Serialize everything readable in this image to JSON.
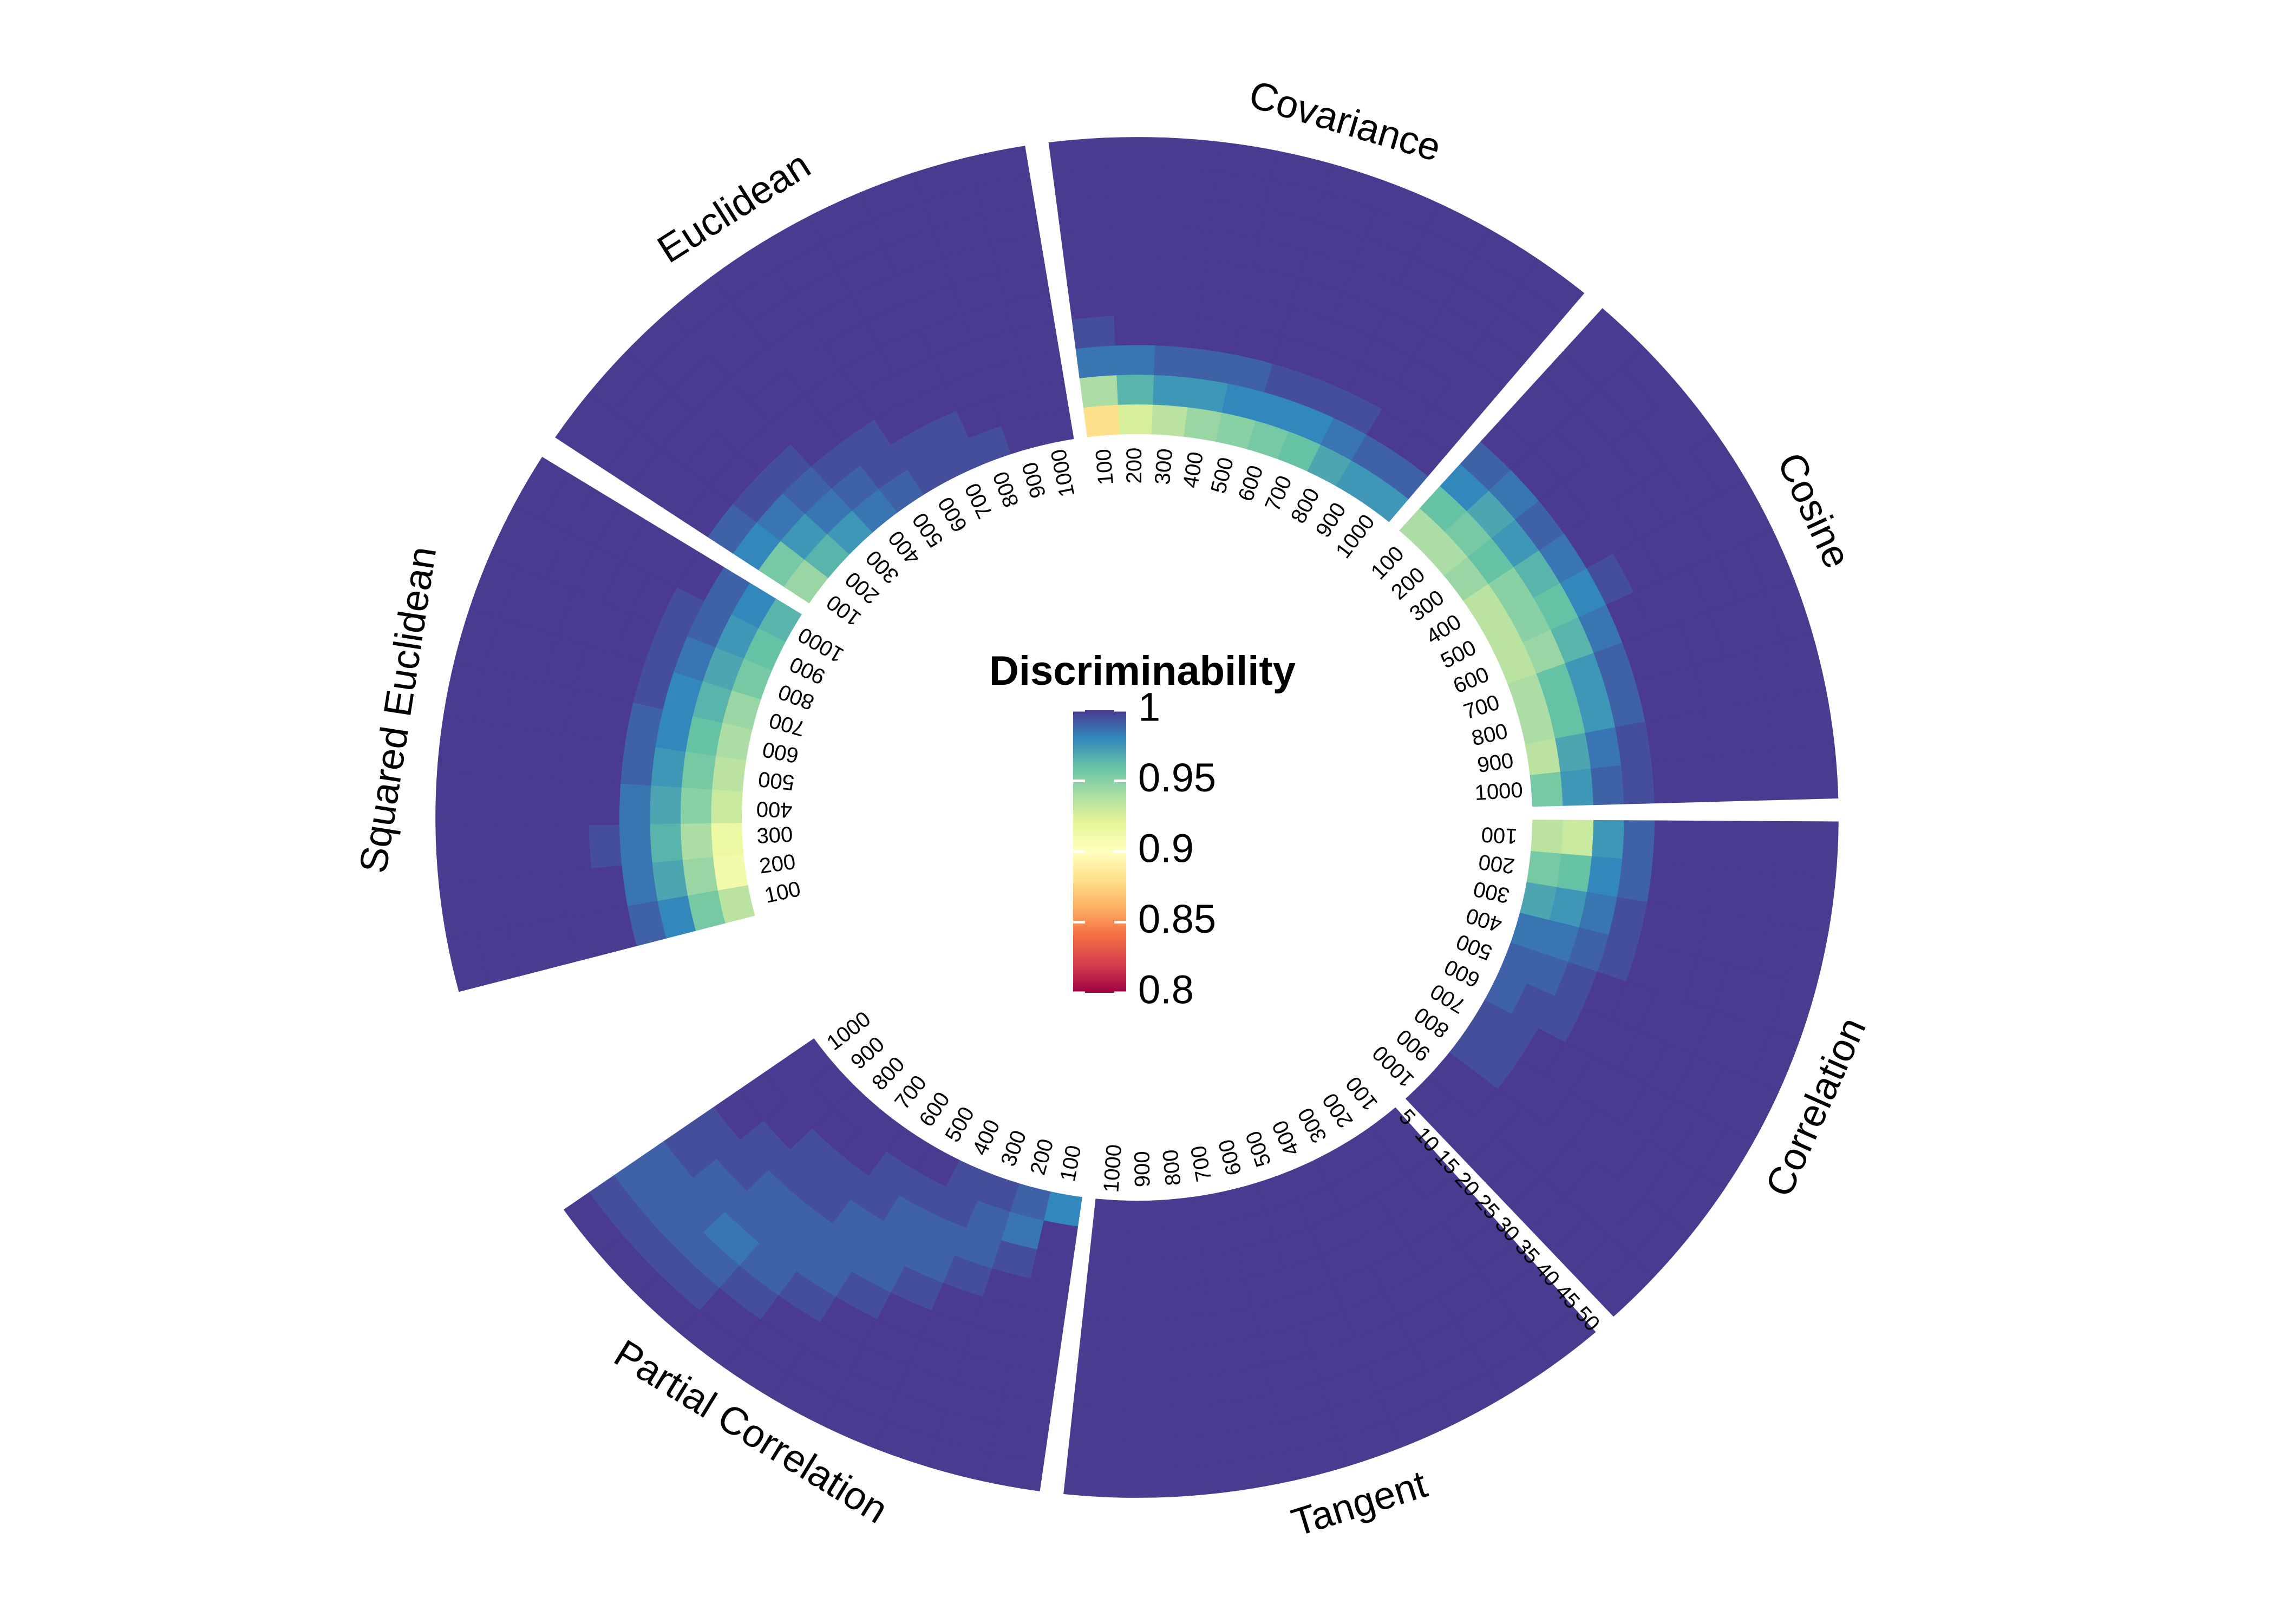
{
  "chart_data": {
    "type": "heatmap",
    "layout": "polar",
    "legend": {
      "title": "Discriminability",
      "range": [
        0.8,
        1
      ],
      "ticks": [
        1,
        0.95,
        0.9,
        0.85,
        0.8
      ],
      "tick_labels": [
        "1",
        "0.95",
        "0.9",
        "0.85",
        "0.8"
      ],
      "palette": [
        "#9e0142",
        "#d53e4f",
        "#f46d43",
        "#fdae61",
        "#fee08b",
        "#ffffbf",
        "#e6f598",
        "#abdda4",
        "#66c2a5",
        "#3288bd",
        "#4a3a90"
      ]
    },
    "angular_ticks": [
      "100",
      "200",
      "300",
      "400",
      "500",
      "600",
      "700",
      "800",
      "900",
      "1000"
    ],
    "radial_ticks": [
      "5",
      "10",
      "15",
      "20",
      "25",
      "30",
      "35",
      "40",
      "45",
      "50"
    ],
    "angular_values": [
      100,
      200,
      300,
      400,
      500,
      600,
      700,
      800,
      900,
      1000
    ],
    "radial_values": [
      5,
      10,
      15,
      20,
      25,
      30,
      35,
      40,
      45,
      50
    ],
    "panels": [
      {
        "name": "Correlation",
        "values": [
          [
            0.935,
            0.93,
            0.975,
            0.99,
            1,
            1,
            1,
            1,
            1,
            1
          ],
          [
            0.955,
            0.96,
            0.98,
            0.99,
            1,
            1,
            1,
            1,
            1,
            1
          ],
          [
            0.97,
            0.975,
            0.985,
            0.995,
            1,
            1,
            1,
            1,
            1,
            1
          ],
          [
            0.985,
            0.985,
            0.99,
            0.995,
            1,
            1,
            1,
            1,
            1,
            1
          ],
          [
            0.99,
            0.99,
            0.995,
            1,
            1,
            1,
            1,
            1,
            1,
            1
          ],
          [
            0.99,
            0.995,
            0.995,
            1,
            1,
            1,
            1,
            1,
            1,
            1
          ],
          [
            0.995,
            0.995,
            1,
            1,
            1,
            1,
            1,
            1,
            1,
            1
          ],
          [
            0.995,
            0.995,
            1,
            1,
            1,
            1,
            1,
            1,
            1,
            1
          ],
          [
            1,
            1,
            1,
            1,
            1,
            1,
            1,
            1,
            1,
            1
          ],
          [
            1,
            1,
            1,
            1,
            1,
            1,
            1,
            1,
            1,
            1
          ]
        ]
      },
      {
        "name": "Cosine",
        "values": [
          [
            0.94,
            0.96,
            0.98,
            0.99,
            1,
            1,
            1,
            1,
            1,
            1
          ],
          [
            0.94,
            0.955,
            0.97,
            0.985,
            1,
            1,
            1,
            1,
            1,
            1
          ],
          [
            0.945,
            0.96,
            0.975,
            0.99,
            1,
            1,
            1,
            1,
            1,
            1
          ],
          [
            0.935,
            0.95,
            0.965,
            0.985,
            1,
            1,
            1,
            1,
            1,
            1
          ],
          [
            0.935,
            0.95,
            0.96,
            0.98,
            0.995,
            1,
            1,
            1,
            1,
            1
          ],
          [
            0.935,
            0.945,
            0.965,
            0.985,
            1,
            1,
            1,
            1,
            1,
            1
          ],
          [
            0.94,
            0.96,
            0.975,
            0.99,
            1,
            1,
            1,
            1,
            1,
            1
          ],
          [
            0.94,
            0.96,
            0.975,
            0.99,
            1,
            1,
            1,
            1,
            1,
            1
          ],
          [
            0.935,
            0.97,
            0.985,
            0.995,
            1,
            1,
            1,
            1,
            1,
            1
          ],
          [
            0.955,
            0.975,
            0.99,
            0.995,
            1,
            1,
            1,
            1,
            1,
            1
          ]
        ]
      },
      {
        "name": "Covariance",
        "values": [
          [
            0.88,
            0.94,
            0.985,
            0.995,
            1,
            1,
            1,
            1,
            1,
            1
          ],
          [
            0.925,
            0.965,
            0.985,
            1,
            1,
            1,
            1,
            1,
            1,
            1
          ],
          [
            0.935,
            0.975,
            0.99,
            1,
            1,
            1,
            1,
            1,
            1,
            1
          ],
          [
            0.945,
            0.975,
            0.99,
            1,
            1,
            1,
            1,
            1,
            1,
            1
          ],
          [
            0.95,
            0.98,
            0.99,
            1,
            1,
            1,
            1,
            1,
            1,
            1
          ],
          [
            0.955,
            0.98,
            0.995,
            1,
            1,
            1,
            1,
            1,
            1,
            1
          ],
          [
            0.96,
            0.98,
            0.995,
            1,
            1,
            1,
            1,
            1,
            1,
            1
          ],
          [
            0.97,
            0.985,
            0.995,
            1,
            1,
            1,
            1,
            1,
            1,
            1
          ],
          [
            0.975,
            0.99,
            1,
            1,
            1,
            1,
            1,
            1,
            1,
            1
          ],
          [
            0.975,
            0.99,
            1,
            1,
            1,
            1,
            1,
            1,
            1,
            1
          ]
        ]
      },
      {
        "name": "Euclidean",
        "values": [
          [
            0.945,
            0.955,
            0.98,
            0.99,
            1,
            1,
            1,
            1,
            1,
            1
          ],
          [
            0.965,
            0.975,
            0.985,
            0.995,
            1,
            1,
            1,
            1,
            1,
            1
          ],
          [
            0.975,
            0.985,
            0.99,
            0.995,
            1,
            1,
            1,
            1,
            1,
            1
          ],
          [
            0.985,
            0.99,
            0.995,
            1,
            1,
            1,
            1,
            1,
            1,
            1
          ],
          [
            0.99,
            0.995,
            0.995,
            1,
            1,
            1,
            1,
            1,
            1,
            1
          ],
          [
            0.995,
            0.995,
            1,
            1,
            1,
            1,
            1,
            1,
            1,
            1
          ],
          [
            0.995,
            0.995,
            1,
            1,
            1,
            1,
            1,
            1,
            1,
            1
          ],
          [
            0.995,
            1,
            1,
            1,
            1,
            1,
            1,
            1,
            1,
            1
          ],
          [
            1,
            1,
            1,
            1,
            1,
            1,
            1,
            1,
            1,
            1
          ],
          [
            1,
            1,
            1,
            1,
            1,
            1,
            1,
            1,
            1,
            1
          ]
        ]
      },
      {
        "name": "Squared Euclidean",
        "values": [
          [
            0.935,
            0.955,
            0.98,
            0.99,
            1,
            1,
            1,
            1,
            1,
            1
          ],
          [
            0.91,
            0.945,
            0.97,
            0.985,
            1,
            1,
            1,
            1,
            1,
            1
          ],
          [
            0.915,
            0.94,
            0.965,
            0.985,
            0.995,
            1,
            1,
            1,
            1,
            1
          ],
          [
            0.93,
            0.95,
            0.97,
            0.985,
            1,
            1,
            1,
            1,
            1,
            1
          ],
          [
            0.935,
            0.955,
            0.975,
            0.99,
            1,
            1,
            1,
            1,
            1,
            1
          ],
          [
            0.94,
            0.96,
            0.98,
            0.99,
            1,
            1,
            1,
            1,
            1,
            1
          ],
          [
            0.945,
            0.965,
            0.98,
            0.995,
            1,
            1,
            1,
            1,
            1,
            1
          ],
          [
            0.955,
            0.97,
            0.985,
            0.995,
            1,
            1,
            1,
            1,
            1,
            1
          ],
          [
            0.96,
            0.975,
            0.99,
            0.995,
            1,
            1,
            1,
            1,
            1,
            1
          ],
          [
            0.965,
            0.98,
            0.99,
            1,
            1,
            1,
            1,
            1,
            1,
            1
          ]
        ]
      },
      {
        "name": "Tangent",
        "values": [
          [
            1,
            1,
            1,
            1,
            1,
            1,
            1,
            1,
            1,
            1
          ],
          [
            1,
            1,
            1,
            1,
            1,
            1,
            1,
            1,
            1,
            1
          ],
          [
            1,
            1,
            1,
            1,
            1,
            1,
            1,
            1,
            1,
            1
          ],
          [
            1,
            1,
            1,
            1,
            1,
            1,
            1,
            1,
            1,
            1
          ],
          [
            1,
            1,
            1,
            1,
            1,
            1,
            1,
            1,
            1,
            1
          ],
          [
            1,
            1,
            1,
            1,
            1,
            1,
            1,
            1,
            1,
            1
          ],
          [
            1,
            1,
            1,
            1,
            1,
            1,
            1,
            1,
            1,
            1
          ],
          [
            1,
            1,
            1,
            1,
            1,
            1,
            1,
            1,
            1,
            1
          ],
          [
            1,
            1,
            1,
            1,
            1,
            1,
            1,
            1,
            1,
            1
          ],
          [
            1,
            1,
            1,
            1,
            1,
            1,
            1,
            1,
            1,
            1
          ]
        ]
      },
      {
        "name": "Partial Correlation",
        "values": [
          [
            0.98,
            1,
            1,
            1,
            1,
            1,
            1,
            1,
            1,
            1
          ],
          [
            0.99,
            0.985,
            0.995,
            1,
            1,
            1,
            1,
            1,
            1,
            1
          ],
          [
            0.995,
            0.99,
            0.99,
            0.995,
            1,
            1,
            1,
            1,
            1,
            1
          ],
          [
            0.995,
            0.995,
            0.99,
            0.99,
            0.995,
            1,
            1,
            1,
            1,
            1
          ],
          [
            1,
            0.995,
            0.99,
            0.99,
            0.99,
            0.995,
            1,
            1,
            1,
            1
          ],
          [
            1,
            0.995,
            0.995,
            0.99,
            0.99,
            0.99,
            0.995,
            1,
            1,
            1
          ],
          [
            1,
            1,
            0.995,
            0.995,
            0.99,
            0.99,
            0.99,
            0.995,
            1,
            1
          ],
          [
            1,
            1,
            0.995,
            0.995,
            0.99,
            0.99,
            0.985,
            0.99,
            0.995,
            1
          ],
          [
            1,
            1,
            1,
            0.995,
            0.995,
            0.99,
            0.99,
            0.99,
            0.995,
            1
          ],
          [
            1,
            1,
            1,
            1,
            0.995,
            0.995,
            0.99,
            0.99,
            0.995,
            1
          ]
        ]
      }
    ]
  }
}
